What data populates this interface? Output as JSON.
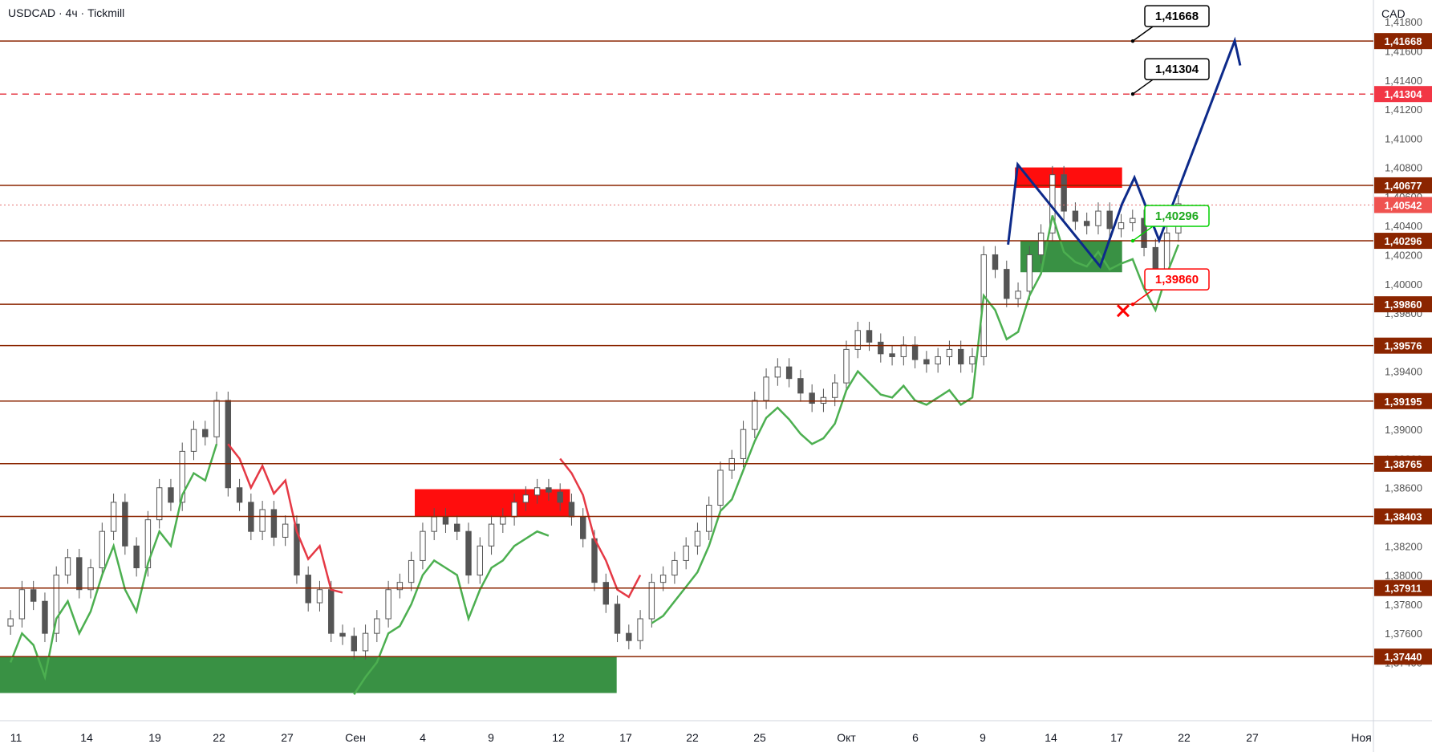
{
  "header": {
    "title": "USDCAD · 4ч · Tickmill"
  },
  "axis": {
    "currency": "CAD"
  },
  "colors": {
    "level": "#8b2500",
    "up": "#2e7d32",
    "down": "#e53935",
    "candle": "#555555",
    "path": "#0d2a8a",
    "bg": "#ffffff"
  },
  "chart_data": {
    "type": "candlestick",
    "title": "",
    "ylim": [
      1.37,
      1.4195
    ],
    "y_ticks": [
      "1,37400",
      "1,37600",
      "1,37800",
      "1,38000",
      "1,38200",
      "1,38400",
      "1,38600",
      "1,38800",
      "1,39000",
      "1,39200",
      "1,39400",
      "1,39600",
      "1,39800",
      "1,40000",
      "1,40200",
      "1,40400",
      "1,40600",
      "1,40800",
      "1,41000",
      "1,41200",
      "1,41400",
      "1,41600",
      "1,41800"
    ],
    "x_ticks": [
      "11",
      "14",
      "19",
      "22",
      "27",
      "Сен",
      "4",
      "9",
      "12",
      "17",
      "22",
      "25",
      "Окт",
      "6",
      "9",
      "14",
      "17",
      "22",
      "27",
      "Ноя"
    ],
    "levels": [
      {
        "value": 1.41668,
        "label": "1,41668",
        "style": "solid"
      },
      {
        "value": 1.41304,
        "label": "1,41304",
        "style": "dashed"
      },
      {
        "value": 1.40677,
        "label": "1,40677",
        "style": "solid"
      },
      {
        "value": 1.40542,
        "label": "1,40542",
        "style": "dotted"
      },
      {
        "value": 1.40296,
        "label": "1,40296",
        "style": "solid"
      },
      {
        "value": 1.3986,
        "label": "1,39860",
        "style": "solid"
      },
      {
        "value": 1.39576,
        "label": "1,39576",
        "style": "solid"
      },
      {
        "value": 1.39195,
        "label": "1,39195",
        "style": "solid"
      },
      {
        "value": 1.38765,
        "label": "1,38765",
        "style": "solid"
      },
      {
        "value": 1.38403,
        "label": "1,38403",
        "style": "solid"
      },
      {
        "value": 1.37911,
        "label": "1,37911",
        "style": "solid"
      },
      {
        "value": 1.3744,
        "label": "1,37440",
        "style": "solid"
      }
    ],
    "price_series": [
      1.377,
      1.379,
      1.3782,
      1.376,
      1.38,
      1.3812,
      1.379,
      1.3805,
      1.383,
      1.385,
      1.382,
      1.3805,
      1.3838,
      1.386,
      1.385,
      1.3885,
      1.39,
      1.3895,
      1.392,
      1.386,
      1.385,
      1.383,
      1.3845,
      1.3826,
      1.3835,
      1.38,
      1.3781,
      1.379,
      1.376,
      1.3758,
      1.3748,
      1.376,
      1.377,
      1.379,
      1.3795,
      1.381,
      1.383,
      1.384,
      1.3835,
      1.383,
      1.38,
      1.382,
      1.3835,
      1.384,
      1.385,
      1.3855,
      1.386,
      1.3857,
      1.385,
      1.384,
      1.3825,
      1.3795,
      1.378,
      1.376,
      1.3755,
      1.377,
      1.3795,
      1.38,
      1.381,
      1.382,
      1.383,
      1.3848,
      1.3872,
      1.388,
      1.39,
      1.392,
      1.3936,
      1.3943,
      1.3935,
      1.3925,
      1.3918,
      1.3922,
      1.3932,
      1.3955,
      1.3968,
      1.396,
      1.3952,
      1.395,
      1.3958,
      1.3948,
      1.3945,
      1.395,
      1.3955,
      1.3945,
      1.395,
      1.402,
      1.401,
      1.399,
      1.3995,
      1.402,
      1.4035,
      1.4075,
      1.405,
      1.4043,
      1.404,
      1.405,
      1.4038,
      1.4042,
      1.4045,
      1.4025,
      1.401,
      1.4035,
      1.4055
    ],
    "boxes": [
      {
        "name": "resistance-zone-august",
        "x0": 0.302,
        "x1": 0.415,
        "y0": 1.38403,
        "y1": 1.3859,
        "color": "red"
      },
      {
        "name": "support-zone-august",
        "x0": 0.0,
        "x1": 0.449,
        "y0": 1.3719,
        "y1": 1.3744,
        "color": "green"
      },
      {
        "name": "resistance-zone-october",
        "x0": 0.739,
        "x1": 0.817,
        "y0": 1.4066,
        "y1": 1.408,
        "color": "red"
      },
      {
        "name": "support-zone-october",
        "x0": 0.743,
        "x1": 0.817,
        "y0": 1.4008,
        "y1": 1.40296,
        "color": "green"
      }
    ],
    "forecast_path": [
      {
        "x": 0.734,
        "y": 1.4027
      },
      {
        "x": 0.741,
        "y": 1.4082
      },
      {
        "x": 0.801,
        "y": 1.4012
      },
      {
        "x": 0.817,
        "y": 1.4055
      },
      {
        "x": 0.826,
        "y": 1.4073
      },
      {
        "x": 0.844,
        "y": 1.403
      },
      {
        "x": 0.899,
        "y": 1.4167
      },
      {
        "x": 0.903,
        "y": 1.415
      }
    ],
    "callouts": [
      {
        "label": "1,41668",
        "value": 1.41668,
        "color": "#000000"
      },
      {
        "label": "1,41304",
        "value": 1.41304,
        "color": "#000000"
      },
      {
        "label": "1,40296",
        "value": 1.40296,
        "color": "#00d000"
      },
      {
        "label": "1,39860",
        "value": 1.3986,
        "color": "#ff0000"
      }
    ]
  }
}
